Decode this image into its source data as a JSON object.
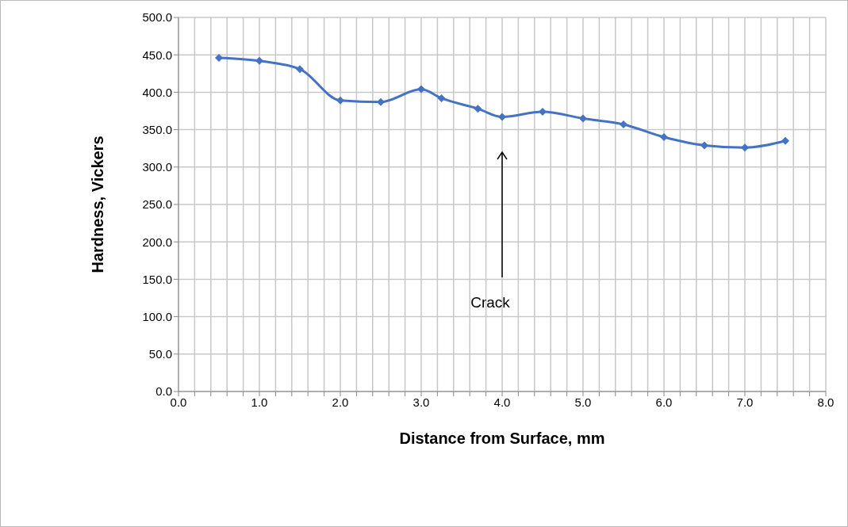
{
  "chart_data": {
    "type": "line",
    "xlabel": "Distance from Surface, mm",
    "ylabel": "Hardness, Vickers",
    "x": [
      0.5,
      1.0,
      1.5,
      2.0,
      2.5,
      3.0,
      3.25,
      3.7,
      4.0,
      4.5,
      5.0,
      5.5,
      6.0,
      6.5,
      7.0,
      7.5
    ],
    "series": [
      {
        "color": "#4472c4",
        "values": [
          446,
          442,
          431,
          389,
          387,
          404,
          392,
          378,
          367,
          374,
          365,
          357,
          340,
          329,
          326,
          335
        ]
      }
    ],
    "xlim": [
      0,
      8
    ],
    "xticks": [
      {
        "value": 0,
        "label": "0.0"
      },
      {
        "value": 0.2,
        "label": null
      },
      {
        "value": 0.4,
        "label": null
      },
      {
        "value": 0.6,
        "label": null
      },
      {
        "value": 0.8,
        "label": null
      },
      {
        "value": 1,
        "label": "1.0"
      },
      {
        "value": 1.2,
        "label": null
      },
      {
        "value": 1.4,
        "label": null
      },
      {
        "value": 1.6,
        "label": null
      },
      {
        "value": 1.8,
        "label": null
      },
      {
        "value": 2,
        "label": "2.0"
      },
      {
        "value": 2.2,
        "label": null
      },
      {
        "value": 2.4,
        "label": null
      },
      {
        "value": 2.6,
        "label": null
      },
      {
        "value": 2.8,
        "label": null
      },
      {
        "value": 3,
        "label": "3.0"
      },
      {
        "value": 3.2,
        "label": null
      },
      {
        "value": 3.4,
        "label": null
      },
      {
        "value": 3.6,
        "label": null
      },
      {
        "value": 3.8,
        "label": null
      },
      {
        "value": 4,
        "label": "4.0"
      },
      {
        "value": 4.2,
        "label": null
      },
      {
        "value": 4.4,
        "label": null
      },
      {
        "value": 4.6,
        "label": null
      },
      {
        "value": 4.8,
        "label": null
      },
      {
        "value": 5,
        "label": "5.0"
      },
      {
        "value": 5.2,
        "label": null
      },
      {
        "value": 5.4,
        "label": null
      },
      {
        "value": 5.6,
        "label": null
      },
      {
        "value": 5.8,
        "label": null
      },
      {
        "value": 6,
        "label": "6.0"
      },
      {
        "value": 6.2,
        "label": null
      },
      {
        "value": 6.4,
        "label": null
      },
      {
        "value": 6.6,
        "label": null
      },
      {
        "value": 6.8,
        "label": null
      },
      {
        "value": 7,
        "label": "7.0"
      },
      {
        "value": 7.2,
        "label": null
      },
      {
        "value": 7.4,
        "label": null
      },
      {
        "value": 7.6,
        "label": null
      },
      {
        "value": 7.8,
        "label": null
      },
      {
        "value": 8,
        "label": "8.0"
      }
    ],
    "ylim": [
      0,
      500
    ],
    "yticks": [
      {
        "value": 0,
        "label": "0.0"
      },
      {
        "value": 50,
        "label": "50.0"
      },
      {
        "value": 100,
        "label": "100.0"
      },
      {
        "value": 150,
        "label": "150.0"
      },
      {
        "value": 200,
        "label": "200.0"
      },
      {
        "value": 250,
        "label": "250.0"
      },
      {
        "value": 300,
        "label": "300.0"
      },
      {
        "value": 350,
        "label": "350.0"
      },
      {
        "value": 400,
        "label": "400.0"
      },
      {
        "value": 450,
        "label": "450.0"
      },
      {
        "value": 500,
        "label": "500.0"
      }
    ],
    "grid": true,
    "marker": "diamond",
    "line_style": "solid",
    "annotations": [
      "Crack"
    ]
  }
}
